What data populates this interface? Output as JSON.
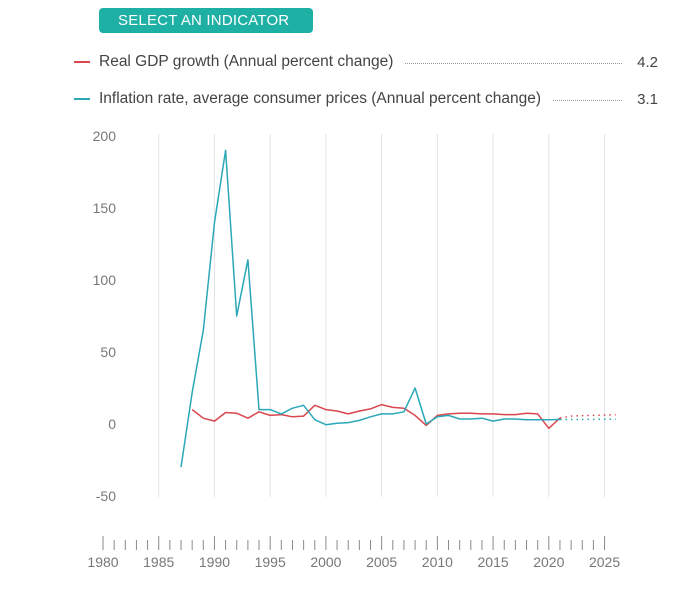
{
  "header": {
    "select_label": "SELECT AN INDICATOR"
  },
  "legend": [
    {
      "label": "Real GDP growth (Annual percent change)",
      "value": "4.2",
      "color": "#d9464e"
    },
    {
      "label": "Inflation rate, average consumer prices (Annual percent change)",
      "value": "3.1",
      "color": "#2aa8b8"
    }
  ],
  "chart_data": {
    "type": "line",
    "title": "",
    "xlabel": "",
    "ylabel": "",
    "xlim": [
      1980,
      2026
    ],
    "ylim": [
      -50,
      200
    ],
    "y_ticks": [
      200,
      150,
      100,
      50,
      0,
      -50
    ],
    "x_ticks": [
      1980,
      1985,
      1990,
      1995,
      2000,
      2005,
      2010,
      2015,
      2020,
      2025
    ],
    "grid": "vertical",
    "projection_start": 2021,
    "series": [
      {
        "name": "Real GDP growth (Annual percent change)",
        "color": "#d9464e",
        "x": [
          1988,
          1989,
          1990,
          1991,
          1992,
          1993,
          1994,
          1995,
          1996,
          1997,
          1998,
          1999,
          2000,
          2001,
          2002,
          2003,
          2004,
          2005,
          2006,
          2007,
          2008,
          2009,
          2010,
          2011,
          2012,
          2013,
          2014,
          2015,
          2016,
          2017,
          2018,
          2019,
          2020,
          2021,
          2022,
          2023,
          2024,
          2025,
          2026
        ],
        "values": [
          10,
          4,
          2,
          8,
          7.5,
          4,
          8.5,
          6,
          6.5,
          5,
          5.5,
          13,
          10,
          9,
          7,
          9,
          10.5,
          13.5,
          11.5,
          11,
          6,
          -1,
          6,
          7,
          7.5,
          7.5,
          7,
          7,
          6.5,
          6.5,
          7.5,
          7,
          -3,
          4.2,
          5.5,
          5.8,
          6,
          6.2,
          6.4
        ]
      },
      {
        "name": "Inflation rate, average consumer prices (Annual percent change)",
        "color": "#2aa8b8",
        "x": [
          1987,
          1988,
          1989,
          1990,
          1991,
          1992,
          1993,
          1994,
          1995,
          1996,
          1997,
          1998,
          1999,
          2000,
          2001,
          2002,
          2003,
          2004,
          2005,
          2006,
          2007,
          2008,
          2009,
          2010,
          2011,
          2012,
          2013,
          2014,
          2015,
          2016,
          2017,
          2018,
          2019,
          2020,
          2021,
          2022,
          2023,
          2024,
          2025,
          2026
        ],
        "values": [
          -30,
          22,
          65,
          140,
          190,
          75,
          114,
          10,
          10,
          7,
          11,
          13,
          3,
          -0.5,
          0.5,
          1,
          2.5,
          5,
          7,
          7,
          8.5,
          25,
          0,
          5,
          6,
          3.5,
          3.5,
          4,
          2,
          3.5,
          3.5,
          3,
          3,
          3,
          3.1,
          3.1,
          3.2,
          3.2,
          3.3,
          3.3
        ]
      }
    ]
  }
}
